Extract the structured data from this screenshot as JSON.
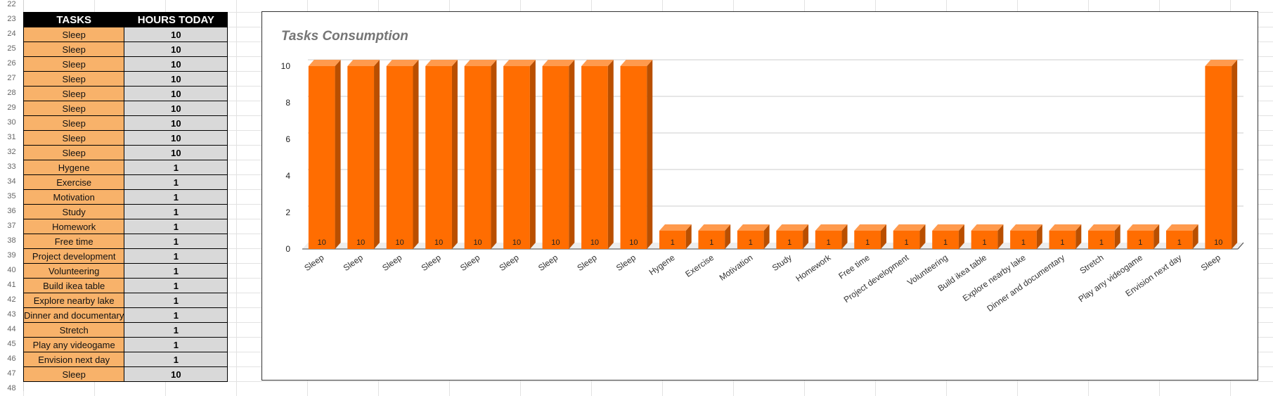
{
  "sheet": {
    "row_numbers": [
      "22",
      "23",
      "24",
      "25",
      "26",
      "27",
      "28",
      "29",
      "30",
      "31",
      "32",
      "33",
      "34",
      "35",
      "36",
      "37",
      "38",
      "39",
      "40",
      "41",
      "42",
      "43",
      "44",
      "45",
      "46",
      "47",
      "48"
    ],
    "headers": {
      "tasks": "TASKS",
      "hours": "HOURS TODAY"
    },
    "rows": [
      {
        "task": "Sleep",
        "hours": "10"
      },
      {
        "task": "Sleep",
        "hours": "10"
      },
      {
        "task": "Sleep",
        "hours": "10"
      },
      {
        "task": "Sleep",
        "hours": "10"
      },
      {
        "task": "Sleep",
        "hours": "10"
      },
      {
        "task": "Sleep",
        "hours": "10"
      },
      {
        "task": "Sleep",
        "hours": "10"
      },
      {
        "task": "Sleep",
        "hours": "10"
      },
      {
        "task": "Sleep",
        "hours": "10"
      },
      {
        "task": "Hygene",
        "hours": "1"
      },
      {
        "task": "Exercise",
        "hours": "1"
      },
      {
        "task": "Motivation",
        "hours": "1"
      },
      {
        "task": "Study",
        "hours": "1"
      },
      {
        "task": "Homework",
        "hours": "1"
      },
      {
        "task": "Free time",
        "hours": "1"
      },
      {
        "task": "Project development",
        "hours": "1"
      },
      {
        "task": "Volunteering",
        "hours": "1"
      },
      {
        "task": "Build ikea table",
        "hours": "1"
      },
      {
        "task": "Explore nearby lake",
        "hours": "1"
      },
      {
        "task": "Dinner and documentary",
        "hours": "1"
      },
      {
        "task": "Stretch",
        "hours": "1"
      },
      {
        "task": "Play any videogame",
        "hours": "1"
      },
      {
        "task": "Envision next day",
        "hours": "1"
      },
      {
        "task": "Sleep",
        "hours": "10"
      }
    ]
  },
  "chart_data": {
    "type": "bar",
    "title": "Tasks Consumption",
    "categories": [
      "Sleep",
      "Sleep",
      "Sleep",
      "Sleep",
      "Sleep",
      "Sleep",
      "Sleep",
      "Sleep",
      "Sleep",
      "Hygene",
      "Exercise",
      "Motivation",
      "Study",
      "Homework",
      "Free time",
      "Project development",
      "Volunteering",
      "Build ikea table",
      "Explore nearby lake",
      "Dinner and documentary",
      "Stretch",
      "Play any videogame",
      "Envision next day",
      "Sleep"
    ],
    "values": [
      10,
      10,
      10,
      10,
      10,
      10,
      10,
      10,
      10,
      1,
      1,
      1,
      1,
      1,
      1,
      1,
      1,
      1,
      1,
      1,
      1,
      1,
      1,
      10
    ],
    "yticks": [
      "0",
      "2",
      "4",
      "6",
      "8",
      "10"
    ],
    "ylim": [
      0,
      10
    ],
    "grid": true,
    "legend": "none",
    "bar_color": "#ff6d01",
    "bar_side_color": "#b94f00",
    "bar_top_color": "#ff9a4d"
  }
}
